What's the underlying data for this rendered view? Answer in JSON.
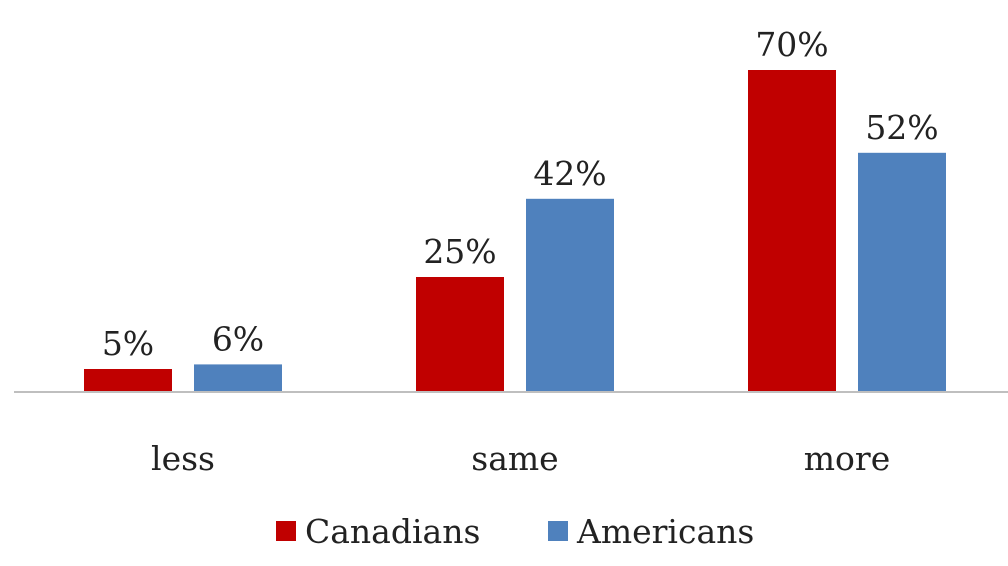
{
  "chart_data": {
    "type": "bar",
    "categories": [
      "less",
      "same",
      "more"
    ],
    "series": [
      {
        "name": "Canadians",
        "values": [
          5,
          25,
          70
        ],
        "labels": [
          "5%",
          "25%",
          "70%"
        ],
        "color": "#C00000"
      },
      {
        "name": "Americans",
        "values": [
          6,
          42,
          52
        ],
        "labels": [
          "6%",
          "42%",
          "52%"
        ],
        "color": "#4F81BD"
      }
    ],
    "title": "",
    "xlabel": "",
    "ylabel": "",
    "ylim": [
      0,
      75
    ],
    "grid": false,
    "legend_position": "bottom",
    "axis_color": "#BFBFBF"
  }
}
